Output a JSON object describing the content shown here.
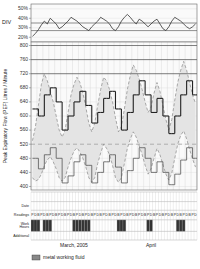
{
  "chart_data": [
    {
      "type": "line",
      "ylabel": "DIV",
      "ylim": [
        15,
        55
      ],
      "yticks": [
        {
          "value": 20,
          "label": "20%"
        },
        {
          "value": 30,
          "label": "30%"
        },
        {
          "value": 40,
          "label": "40%"
        },
        {
          "value": 50,
          "label": "50%"
        }
      ],
      "grid": true,
      "color": "#333333",
      "values": [
        21,
        24,
        28,
        33,
        37,
        34,
        40,
        37,
        34,
        29,
        31,
        34,
        37,
        41,
        39,
        37,
        34,
        31,
        29,
        27,
        31,
        34,
        37,
        41,
        39,
        37,
        34,
        29,
        27,
        31,
        37,
        41,
        44,
        41,
        37,
        34,
        39,
        37,
        34,
        31,
        34,
        37,
        39,
        34,
        29,
        27,
        31,
        37,
        41,
        39,
        37,
        34,
        31,
        29,
        31,
        34
      ],
      "reference_lines": [
        {
          "value": 27
        },
        {
          "value": 35
        }
      ]
    },
    {
      "type": "line",
      "ylabel": "Peak Expiratory Flow (PEF) Litres / Minute",
      "ylim": [
        390,
        810
      ],
      "yticks": [
        400,
        440,
        480,
        520,
        560,
        600,
        640,
        680,
        720,
        760,
        800
      ],
      "grid": true,
      "series": [
        {
          "color": "#888888",
          "line_style": "dashed",
          "values": [
            530,
            570,
            630,
            690,
            720,
            700,
            670,
            640,
            600,
            560,
            540,
            560,
            610,
            660,
            690,
            710,
            695,
            665,
            625,
            580,
            555,
            580,
            630,
            675,
            710,
            700,
            675,
            640,
            595,
            555,
            570,
            620,
            675,
            715,
            745,
            730,
            705,
            675,
            640,
            610,
            625,
            665,
            695,
            670,
            630,
            590,
            560,
            590,
            645,
            695,
            730,
            755,
            730,
            695,
            660,
            635
          ]
        },
        {
          "color": "#888888",
          "line_style": "dashed",
          "values": [
            425,
            415,
            420,
            435,
            460,
            475,
            485,
            470,
            450,
            425,
            415,
            425,
            455,
            480,
            500,
            510,
            498,
            480,
            455,
            425,
            412,
            425,
            465,
            495,
            520,
            508,
            490,
            460,
            425,
            412,
            425,
            465,
            508,
            535,
            555,
            540,
            515,
            490,
            460,
            435,
            450,
            480,
            508,
            490,
            462,
            435,
            418,
            438,
            480,
            520,
            545,
            558,
            535,
            505,
            478,
            455
          ]
        },
        {
          "type": "step",
          "color": "#222222",
          "line_style": "solid",
          "values": [
            620,
            620,
            600,
            600,
            660,
            660,
            680,
            680,
            640,
            640,
            560,
            560,
            600,
            600,
            640,
            640,
            670,
            670,
            630,
            630,
            580,
            580,
            610,
            610,
            650,
            650,
            670,
            670,
            620,
            620,
            560,
            560,
            610,
            610,
            660,
            660,
            700,
            700,
            660,
            660,
            610,
            610,
            650,
            650,
            600,
            600,
            550,
            550,
            600,
            600,
            660,
            660,
            700,
            700,
            660,
            660
          ]
        },
        {
          "type": "step",
          "color": "#555555",
          "line_style": "solid",
          "values": [
            480,
            480,
            450,
            450,
            490,
            490,
            510,
            510,
            480,
            480,
            410,
            410,
            430,
            430,
            470,
            470,
            490,
            490,
            460,
            460,
            410,
            410,
            440,
            440,
            470,
            470,
            490,
            490,
            455,
            455,
            410,
            410,
            445,
            445,
            480,
            480,
            510,
            510,
            480,
            480,
            440,
            440,
            470,
            470,
            440,
            440,
            405,
            405,
            435,
            435,
            475,
            475,
            510,
            510,
            480,
            480
          ]
        }
      ],
      "reference_lines": [
        {
          "value": 800,
          "line_style": "solid"
        },
        {
          "value": 760,
          "line_style": "solid"
        },
        {
          "value": 720,
          "line_style": "solid"
        },
        {
          "value": 520,
          "line_style": "dashed"
        }
      ]
    },
    {
      "type": "table",
      "row_labels": [
        "Additional",
        "Work\nHours",
        "Readings",
        "Date"
      ],
      "color": "#333333",
      "work_positions": [
        0,
        1,
        2,
        4,
        5,
        6,
        14,
        15,
        16,
        17,
        18,
        19,
        29,
        30,
        31,
        39,
        40,
        49,
        50,
        51
      ],
      "readings": [
        "P",
        "D",
        "B",
        "P",
        "D",
        "B",
        "P",
        "D",
        "B",
        "P",
        "D",
        "B",
        "P",
        "D",
        "B",
        "P",
        "D",
        "B",
        "P",
        "D",
        "B",
        "P",
        "D",
        "B",
        "P",
        "D",
        "B",
        "P",
        "D",
        "B",
        "P",
        "D",
        "B",
        "P",
        "D",
        "B",
        "P",
        "D",
        "B",
        "P",
        "D",
        "B",
        "P",
        "D",
        "B",
        "P",
        "D",
        "B",
        "P",
        "D",
        "B",
        "P",
        "D",
        "B",
        "P",
        "D"
      ],
      "months": [
        {
          "label": "March,  2005",
          "index": 14
        },
        {
          "label": "April",
          "index": 40
        }
      ],
      "legend_entry": {
        "name": "metal working fluid",
        "color": "#888888"
      }
    }
  ]
}
